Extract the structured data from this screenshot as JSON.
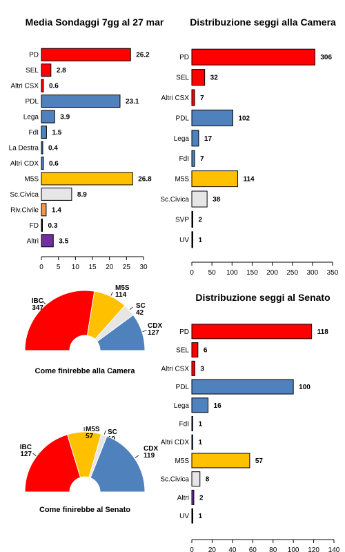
{
  "colors": {
    "red": "#ff0000",
    "blue": "#4f81bd",
    "yellow": "#ffc000",
    "gray": "#e6e6e6",
    "orange": "#f79646",
    "purple": "#7030a0",
    "black": "#000000"
  },
  "chart_data": [
    {
      "type": "bar",
      "orientation": "horizontal",
      "title": "Media Sondaggi 7gg al 27 mar",
      "categories": [
        "PD",
        "SEL",
        "Altri CSX",
        "PDL",
        "Lega",
        "FdI",
        "La Destra",
        "Altri CDX",
        "M5S",
        "Sc.Civica",
        "Riv.Civile",
        "FD",
        "Altri"
      ],
      "values": [
        26.2,
        2.8,
        0.6,
        23.1,
        3.9,
        1.5,
        0.4,
        0.6,
        26.8,
        8.9,
        1.4,
        0.3,
        3.5
      ],
      "value_labels": [
        "26.2",
        "2.8",
        "0.6",
        "23.1",
        "3.9",
        "1.5",
        "0.4",
        "0.6",
        "26.8",
        "8.9",
        "1.4",
        "0.3",
        "3.5"
      ],
      "bar_colors": [
        "red",
        "red",
        "red",
        "blue",
        "blue",
        "blue",
        "blue",
        "blue",
        "yellow",
        "gray",
        "orange",
        "black",
        "purple"
      ],
      "xlim": [
        0,
        30
      ],
      "ticks": [
        0,
        5,
        10,
        15,
        20,
        25,
        30
      ],
      "tick_labels": [
        "0",
        "5",
        "10",
        "15",
        "20",
        "25",
        "30"
      ]
    },
    {
      "type": "bar",
      "orientation": "horizontal",
      "title": "Distribuzione seggi alla Camera",
      "categories": [
        "PD",
        "SEL",
        "Altri CSX",
        "PDL",
        "Lega",
        "FdI",
        "M5S",
        "Sc.Civica",
        "SVP",
        "UV"
      ],
      "values": [
        306,
        32,
        7,
        102,
        17,
        7,
        114,
        38,
        2,
        1
      ],
      "value_labels": [
        "306",
        "32",
        "7",
        "102",
        "17",
        "7",
        "114",
        "38",
        "2",
        "1"
      ],
      "bar_colors": [
        "red",
        "red",
        "red",
        "blue",
        "blue",
        "blue",
        "yellow",
        "gray",
        "black",
        "black"
      ],
      "xlim": [
        0,
        350
      ],
      "ticks": [
        0,
        50,
        100,
        150,
        200,
        250,
        300,
        350
      ],
      "tick_labels": [
        "0",
        "50",
        "100",
        "150",
        "200",
        "250",
        "300",
        "350"
      ]
    },
    {
      "type": "bar",
      "orientation": "horizontal",
      "title": "Distribuzione seggi al Senato",
      "categories": [
        "PD",
        "SEL",
        "Altri CSX",
        "PDL",
        "Lega",
        "FdI",
        "Altri CDX",
        "M5S",
        "Sc.Civica",
        "Altri",
        "UV"
      ],
      "values": [
        118,
        6,
        3,
        100,
        16,
        1,
        1,
        57,
        8,
        2,
        1
      ],
      "value_labels": [
        "118",
        "6",
        "3",
        "100",
        "16",
        "1",
        "1",
        "57",
        "8",
        "2",
        "1"
      ],
      "bar_colors": [
        "red",
        "red",
        "red",
        "blue",
        "blue",
        "blue",
        "blue",
        "yellow",
        "gray",
        "purple",
        "black"
      ],
      "xlim": [
        0,
        140
      ],
      "ticks": [
        0,
        20,
        40,
        60,
        80,
        100,
        120,
        140
      ],
      "tick_labels": [
        "0",
        "20",
        "40",
        "60",
        "80",
        "100",
        "120",
        "140"
      ]
    },
    {
      "type": "pie",
      "variant": "half-donut",
      "title": "Come finirebbe alla Camera",
      "slices": [
        {
          "name": "IBC",
          "value": 347,
          "value_label": "347",
          "color": "red"
        },
        {
          "name": "M5S",
          "value": 114,
          "value_label": "114",
          "color": "yellow"
        },
        {
          "name": "SC",
          "value": 42,
          "value_label": "42",
          "color": "gray"
        },
        {
          "name": "CDX",
          "value": 127,
          "value_label": "127",
          "color": "blue"
        }
      ]
    },
    {
      "type": "pie",
      "variant": "half-donut",
      "title": "Come finirebbe al Senato",
      "slices": [
        {
          "name": "IBC",
          "value": 127,
          "value_label": "127",
          "color": "red"
        },
        {
          "name": "M5S",
          "value": 57,
          "value_label": "57",
          "color": "yellow"
        },
        {
          "name": "SC",
          "value": 10,
          "value_label": "10",
          "color": "gray"
        },
        {
          "name": "CDX",
          "value": 119,
          "value_label": "119",
          "color": "blue"
        }
      ]
    }
  ]
}
